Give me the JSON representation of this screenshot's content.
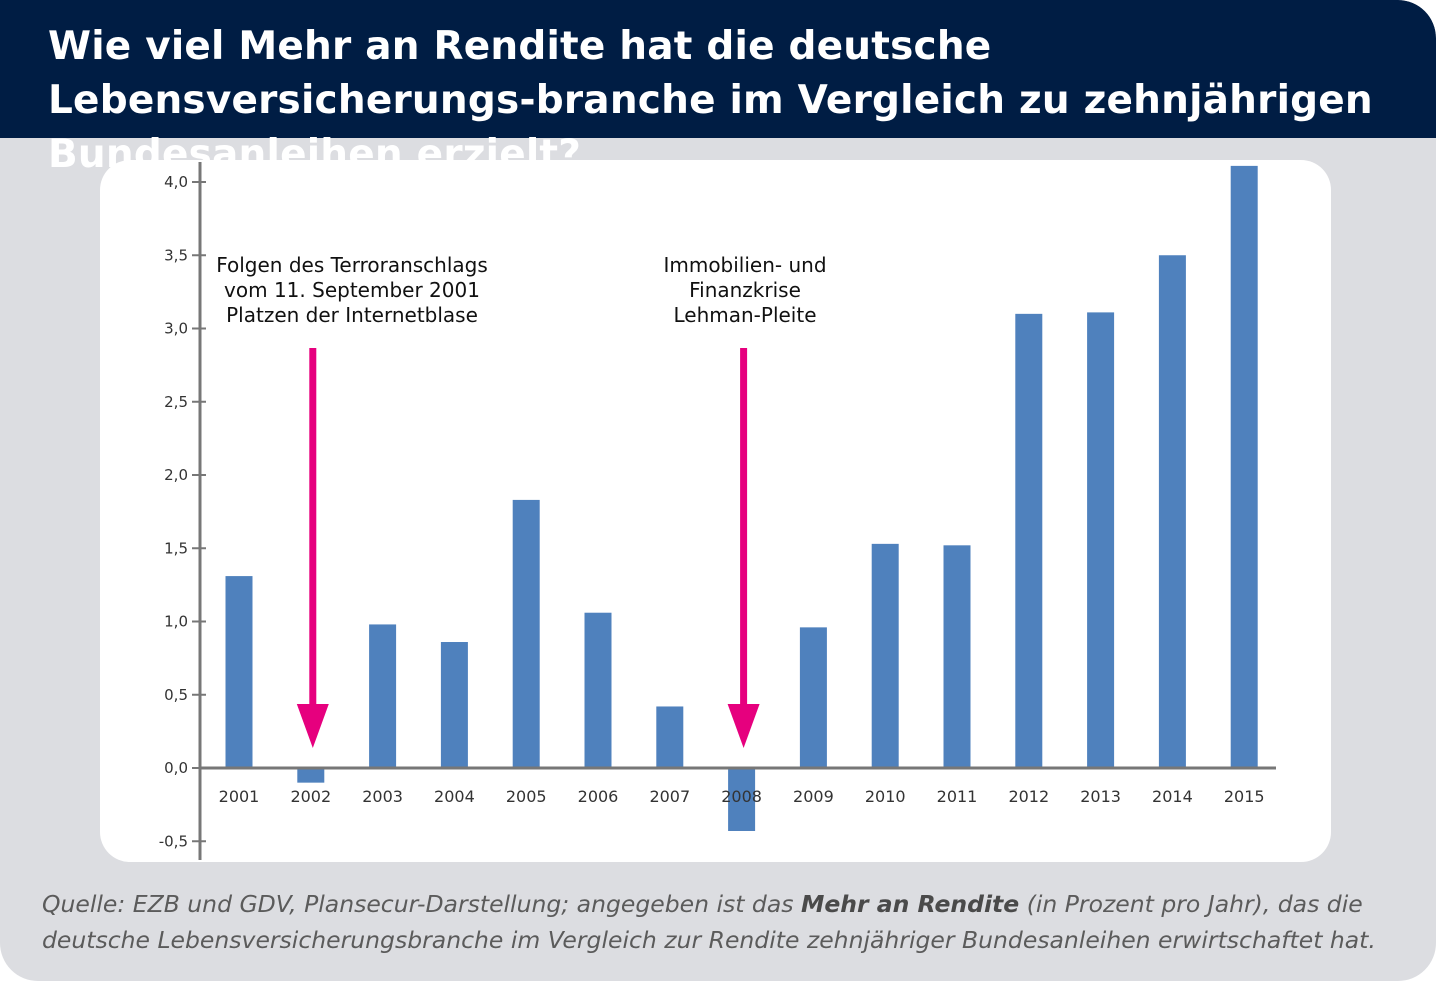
{
  "header": {
    "title": "Wie viel Mehr an Rendite hat die deutsche Lebensversicherungs-branche im Vergleich zu zehnjährigen Bundesanleihen erzielt?"
  },
  "source": {
    "prefix": "Quelle: EZB und GDV, Plansecur-Darstellung; angegeben ist das ",
    "emphasis": "Mehr an Rendite",
    "suffix": " (in Prozent pro Jahr), das die deutsche Lebensversicherungsbranche im Vergleich zur Rendite zehnjähriger Bundesanleihen erwirtschaftet hat."
  },
  "colors": {
    "header_bg": "#001d44",
    "bar": "#4f81bd",
    "arrow": "#e6007e",
    "card_bg": "#dcdde1"
  },
  "chart_data": {
    "type": "bar",
    "title": "",
    "xlabel": "",
    "ylabel": "",
    "categories": [
      "2001",
      "2002",
      "2003",
      "2004",
      "2005",
      "2006",
      "2007",
      "2008",
      "2009",
      "2010",
      "2011",
      "2012",
      "2013",
      "2014",
      "2015"
    ],
    "values": [
      1.31,
      -0.1,
      0.98,
      0.86,
      1.83,
      1.06,
      0.42,
      -0.43,
      0.96,
      1.53,
      1.52,
      3.1,
      3.11,
      3.5,
      4.11
    ],
    "ylim": [
      -0.5,
      4.1
    ],
    "yticks": [
      -0.5,
      0.0,
      0.5,
      1.0,
      1.5,
      2.0,
      2.5,
      3.0,
      3.5,
      4.0
    ],
    "ytick_labels": [
      "-0,5",
      "0,0",
      "0,5",
      "1,0",
      "1,5",
      "2,0",
      "2,5",
      "3,0",
      "3,5",
      "4,0"
    ],
    "grid": false,
    "legend": "none",
    "annotations": [
      {
        "category": "2002",
        "lines": [
          "Folgen des Terroranschlags",
          "vom 11. September 2001",
          "Platzen der Internetblase"
        ],
        "arrow": "down"
      },
      {
        "category": "2008",
        "lines": [
          "Immobilien- und",
          "Finanzkrise",
          "Lehman-Pleite"
        ],
        "arrow": "down"
      }
    ]
  }
}
